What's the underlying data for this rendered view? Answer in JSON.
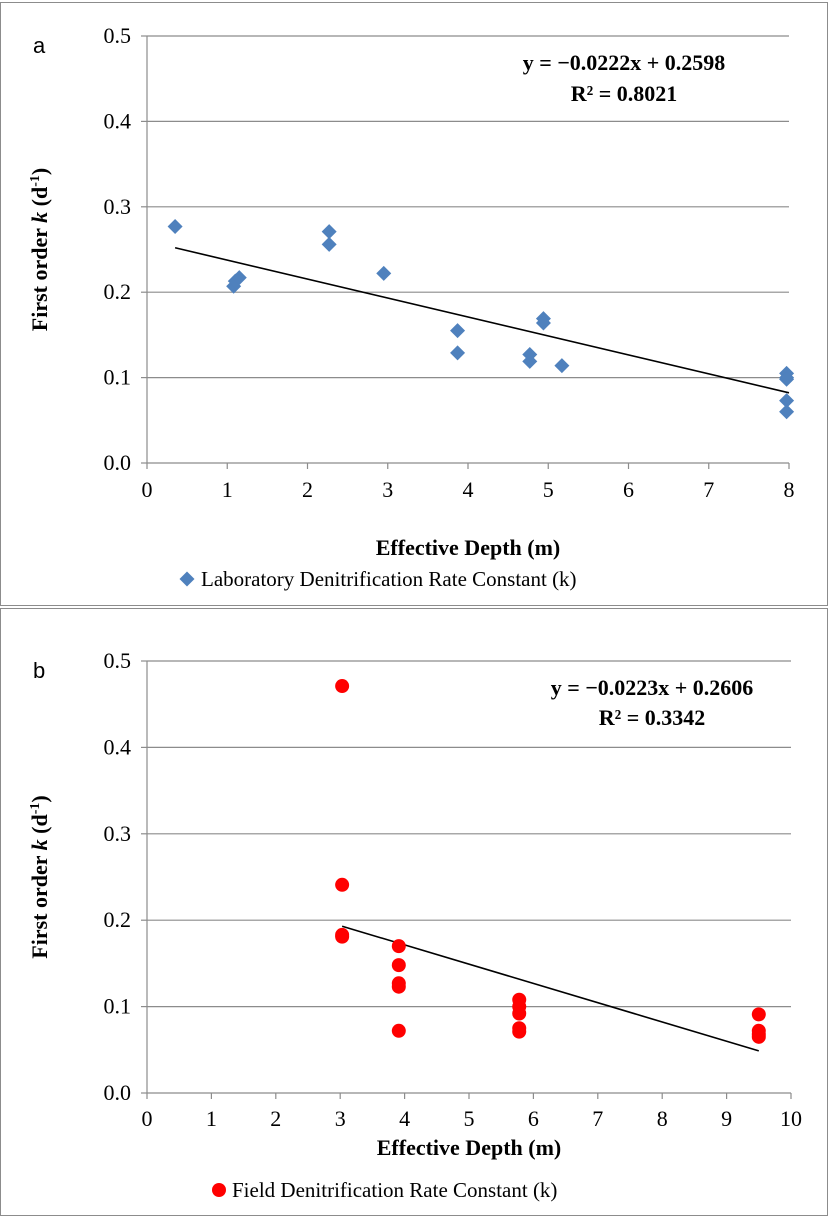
{
  "chart_data": [
    {
      "panel_label": "a",
      "type": "scatter",
      "xlabel": "Effective Depth (m)",
      "ylabel_prefix": "First order ",
      "ylabel_k": "k",
      "ylabel_unit_open": " (d",
      "ylabel_sup": "-1",
      "ylabel_unit_close": ")",
      "xlim": [
        0,
        8
      ],
      "ylim": [
        0,
        0.5
      ],
      "xticks": [
        "0",
        "1",
        "2",
        "3",
        "4",
        "5",
        "6",
        "7",
        "8"
      ],
      "yticks": [
        "0.0",
        "0.1",
        "0.2",
        "0.3",
        "0.4",
        "0.5"
      ],
      "grid": "horizontal",
      "legend_position": "bottom",
      "equation": "y = −0.0222x + 0.2598",
      "r_squared": "R² = 0.8021",
      "trendline": {
        "slope": -0.0222,
        "intercept": 0.2598,
        "x_range": [
          0.35,
          8.0
        ]
      },
      "series": [
        {
          "name": "Laboratory Denitrification Rate Constant (k)",
          "marker": "diamond",
          "color": "#4f81bd",
          "points": [
            [
              0.35,
              0.277
            ],
            [
              1.08,
              0.207
            ],
            [
              1.1,
              0.213
            ],
            [
              1.15,
              0.217
            ],
            [
              2.27,
              0.271
            ],
            [
              2.27,
              0.256
            ],
            [
              2.95,
              0.222
            ],
            [
              3.87,
              0.155
            ],
            [
              3.87,
              0.129
            ],
            [
              4.77,
              0.127
            ],
            [
              4.77,
              0.119
            ],
            [
              4.94,
              0.169
            ],
            [
              4.94,
              0.164
            ],
            [
              5.17,
              0.114
            ],
            [
              7.97,
              0.105
            ],
            [
              7.97,
              0.1
            ],
            [
              7.97,
              0.098
            ],
            [
              7.97,
              0.073
            ],
            [
              7.97,
              0.06
            ]
          ]
        }
      ],
      "legend_label": "Laboratory Denitrification Rate Constant (k)"
    },
    {
      "panel_label": "b",
      "type": "scatter",
      "xlabel": "Effective Depth (m)",
      "ylabel_prefix": "First order ",
      "ylabel_k": "k",
      "ylabel_unit_open": " (d",
      "ylabel_sup": "-1",
      "ylabel_unit_close": ")",
      "xlim": [
        0,
        10
      ],
      "ylim": [
        0,
        0.5
      ],
      "xticks": [
        "0",
        "1",
        "2",
        "3",
        "4",
        "5",
        "6",
        "7",
        "8",
        "9",
        "10"
      ],
      "yticks": [
        "0.0",
        "0.1",
        "0.2",
        "0.3",
        "0.4",
        "0.5"
      ],
      "grid": "horizontal",
      "legend_position": "bottom",
      "equation": "y = −0.0223x + 0.2606",
      "r_squared": "R² = 0.3342",
      "trendline": {
        "slope": -0.0223,
        "intercept": 0.2606,
        "x_range": [
          3.03,
          9.5
        ]
      },
      "series": [
        {
          "name": "Field Denitrification Rate Constant (k)",
          "marker": "circle",
          "color": "#ff0000",
          "points": [
            [
              3.03,
              0.471
            ],
            [
              3.03,
              0.241
            ],
            [
              3.03,
              0.183
            ],
            [
              3.03,
              0.181
            ],
            [
              3.91,
              0.17
            ],
            [
              3.91,
              0.148
            ],
            [
              3.91,
              0.127
            ],
            [
              3.91,
              0.123
            ],
            [
              3.91,
              0.072
            ],
            [
              5.78,
              0.108
            ],
            [
              5.78,
              0.1
            ],
            [
              5.78,
              0.092
            ],
            [
              5.78,
              0.075
            ],
            [
              5.78,
              0.071
            ],
            [
              9.5,
              0.091
            ],
            [
              9.5,
              0.072
            ],
            [
              9.5,
              0.068
            ],
            [
              9.5,
              0.065
            ]
          ]
        }
      ],
      "legend_label": "Field Denitrification Rate Constant (k)"
    }
  ]
}
